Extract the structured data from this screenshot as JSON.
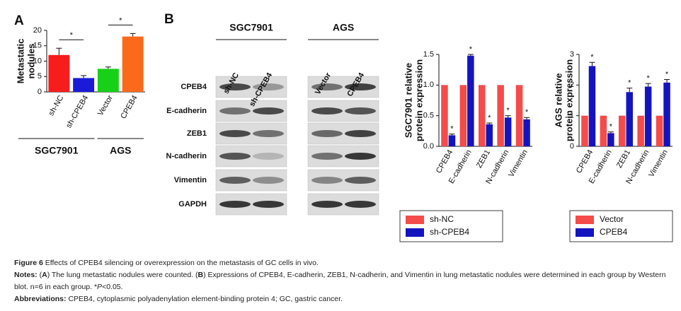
{
  "panels": [
    "A",
    "B"
  ],
  "chart_data": [
    {
      "type": "bar",
      "ylabel": [
        "Metastatic",
        "nodules"
      ],
      "categories": [
        "sh-NC",
        "sh-CPEB4",
        "Vector",
        "CPEB4"
      ],
      "values": [
        12,
        4.5,
        7.5,
        18
      ],
      "errors": [
        2.2,
        0.8,
        0.6,
        1
      ],
      "colors": [
        "#f81d1d",
        "#1a1ad8",
        "#17d017",
        "#fa6a1a"
      ],
      "ylim": [
        0,
        20
      ],
      "yticks": [
        0,
        5,
        10,
        15,
        20
      ],
      "annotations": [
        "*",
        "*"
      ],
      "groups": [
        "SGC7901",
        "AGS"
      ]
    },
    {
      "type": "bar",
      "ylabel": [
        "SGC7901 relative",
        "protein expression"
      ],
      "categories": [
        "CPEB4",
        "E-cadherin",
        "ZEB1",
        "N-cadherin",
        "Vimentin"
      ],
      "series": [
        {
          "name": "sh-NC",
          "color": "#f54b4b",
          "values": [
            1,
            1,
            1,
            1,
            1
          ]
        },
        {
          "name": "sh-CPEB4",
          "color": "#1414bf",
          "values": [
            0.18,
            1.48,
            0.36,
            0.47,
            0.44
          ],
          "errors": [
            0.02,
            0.02,
            0.02,
            0.03,
            0.03
          ],
          "annotations": [
            "*",
            "*",
            "*",
            "*",
            "*"
          ]
        }
      ],
      "ylim": [
        0,
        1.5
      ],
      "yticks": [
        {
          "value": 0,
          "label": "0.0"
        },
        0.5,
        {
          "value": 1,
          "label": "1.0"
        },
        1.5
      ]
    },
    {
      "type": "bar",
      "ylabel": [
        "AGS relative",
        "protein expression"
      ],
      "categories": [
        "CPEB4",
        "E-cadherin",
        "ZEB1",
        "N-cadherin",
        "Vimentin"
      ],
      "series": [
        {
          "name": "Vector",
          "color": "#f54b4b",
          "values": [
            1,
            1,
            1,
            1,
            1
          ]
        },
        {
          "name": "CPEB4",
          "color": "#1414bf",
          "values": [
            2.62,
            0.43,
            1.77,
            1.95,
            2.08
          ],
          "errors": [
            0.12,
            0.04,
            0.13,
            0.1,
            0.1
          ],
          "annotations": [
            "*",
            "*",
            "*",
            "*",
            "*"
          ]
        }
      ],
      "ylim": [
        0,
        3
      ],
      "yticks": [
        0,
        1,
        2,
        3
      ]
    }
  ],
  "blot": {
    "cell_lines": [
      {
        "name": "SGC7901",
        "lanes": [
          "sh-NC",
          "sh-CPEB4"
        ]
      },
      {
        "name": "AGS",
        "lanes": [
          "Vector",
          "CPEB4"
        ]
      }
    ],
    "rows": [
      "CPEB4",
      "E-cadherin",
      "ZEB1",
      "N-cadherin",
      "Vimentin",
      "GAPDH"
    ]
  },
  "caption": {
    "figure_label": "Figure 6",
    "title": "Effects of CPEB4 silencing or overexpression on the metastasis of GC cells in vivo.",
    "notes_label": "Notes:",
    "notes": [
      {
        "text": "("
      },
      {
        "text": "A",
        "bold": true
      },
      {
        "text": ") The lung metastatic nodules were counted. ("
      },
      {
        "text": "B",
        "bold": true
      },
      {
        "text": ") Expressions of CPEB4, E-cadherin, ZEB1, N-cadherin, and Vimentin in lung metastatic nodules were determined in each group by Western blot. n=6 in each group. *"
      },
      {
        "text": "P",
        "italic": true
      },
      {
        "text": "<0.05."
      }
    ],
    "abbreviations_label": "Abbreviations:",
    "abbreviations": "CPEB4, cytoplasmic polyadenylation element-binding protein 4; GC, gastric cancer."
  }
}
